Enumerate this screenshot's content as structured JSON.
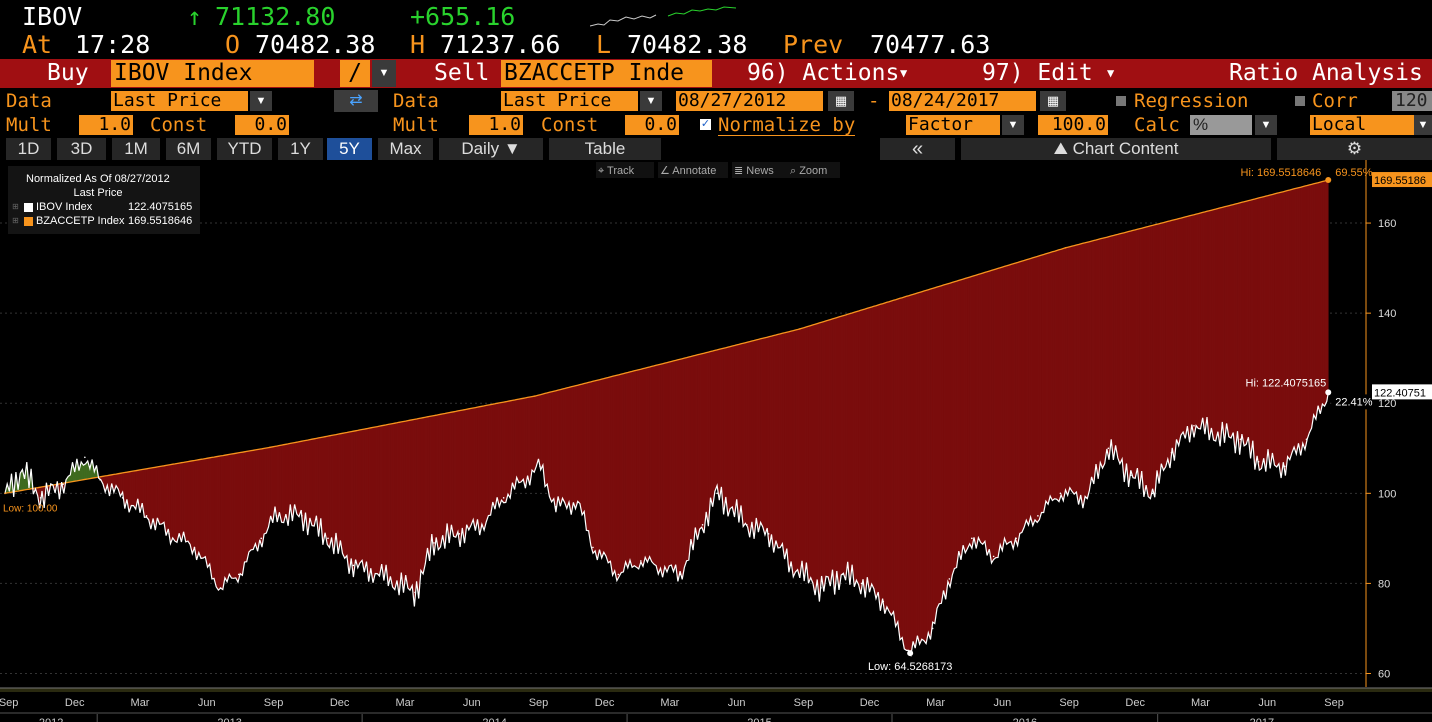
{
  "quote": {
    "ticker": "IBOV",
    "last_arrow": "↑",
    "last": "71132.80",
    "change": "+655.16",
    "at_label": "At",
    "time": "17:28",
    "open_label": "O",
    "open": "70482.38",
    "high_label": "H",
    "high": "71237.66",
    "low_label": "L",
    "low": "70482.38",
    "prev_label": "Prev",
    "prev": "70477.63"
  },
  "toolbar": {
    "buy_label": "Buy",
    "buy_security": "IBOV Index",
    "operator": "/",
    "sell_label": "Sell",
    "sell_security": "BZACCETP Inde",
    "actions_label": "96) Actions",
    "edit_label": "97) Edit",
    "ratio_label": "Ratio Analysis"
  },
  "settings": {
    "data_label": "Data",
    "data_value": "Last Price",
    "data2_label": "Data",
    "data2_value": "Last Price",
    "start_date": "08/27/2012",
    "date_sep": "-",
    "end_date": "08/24/2017",
    "regression_label": "Regression",
    "corr_label": "Corr",
    "corr_value": "120",
    "mult_label": "Mult",
    "mult_value": "1.0",
    "const_label": "Const",
    "const_value": "0.0",
    "mult2_label": "Mult",
    "mult2_value": "1.0",
    "const2_label": "Const",
    "const2_value": "0.0",
    "normalize_label": "Normalize by",
    "normalize_value": "Factor",
    "normalize_amount": "100.0",
    "calc_label": "Calc",
    "calc_value": "%",
    "local_value": "Local"
  },
  "ranges": {
    "buttons": [
      "1D",
      "3D",
      "1M",
      "6M",
      "YTD",
      "1Y",
      "5Y",
      "Max"
    ],
    "active": "5Y",
    "period": "Daily",
    "table_label": "Table",
    "collapse": "«",
    "chart_content": "Chart Content"
  },
  "tools": {
    "track": "Track",
    "annotate": "Annotate",
    "news": "News",
    "zoom": "Zoom"
  },
  "legend": {
    "title": "Normalized As Of 08/27/2012",
    "subtitle": "Last Price",
    "entries": [
      {
        "name": "IBOV Index",
        "value": "122.4075165",
        "color": "#ffffff"
      },
      {
        "name": "BZACCETP Index",
        "value": "169.5518646",
        "color": "#f7941d"
      }
    ]
  },
  "chart_data": {
    "type": "line",
    "title": "",
    "xlabel": "",
    "ylabel": "",
    "ylim": [
      57,
      174
    ],
    "xlim": [
      "2012-08-27",
      "2017-10-15"
    ],
    "y_ticks": [
      60,
      80,
      100,
      120,
      140,
      160
    ],
    "x_ticks_months": [
      {
        "label": "Sep",
        "date": "2012-09-01"
      },
      {
        "label": "Dec",
        "date": "2012-12-01"
      },
      {
        "label": "Mar",
        "date": "2013-03-01"
      },
      {
        "label": "Jun",
        "date": "2013-06-01"
      },
      {
        "label": "Sep",
        "date": "2013-09-01"
      },
      {
        "label": "Dec",
        "date": "2013-12-01"
      },
      {
        "label": "Mar",
        "date": "2014-03-01"
      },
      {
        "label": "Jun",
        "date": "2014-06-01"
      },
      {
        "label": "Sep",
        "date": "2014-09-01"
      },
      {
        "label": "Dec",
        "date": "2014-12-01"
      },
      {
        "label": "Mar",
        "date": "2015-03-01"
      },
      {
        "label": "Jun",
        "date": "2015-06-01"
      },
      {
        "label": "Sep",
        "date": "2015-09-01"
      },
      {
        "label": "Dec",
        "date": "2015-12-01"
      },
      {
        "label": "Mar",
        "date": "2016-03-01"
      },
      {
        "label": "Jun",
        "date": "2016-06-01"
      },
      {
        "label": "Sep",
        "date": "2016-09-01"
      },
      {
        "label": "Dec",
        "date": "2016-12-01"
      },
      {
        "label": "Mar",
        "date": "2017-03-01"
      },
      {
        "label": "Jun",
        "date": "2017-06-01"
      },
      {
        "label": "Sep",
        "date": "2017-09-01"
      }
    ],
    "x_ticks_years": [
      "2012",
      "2013",
      "2014",
      "2015",
      "2016",
      "2017"
    ],
    "series": [
      {
        "name": "IBOV Index",
        "color": "#ffffff",
        "points": [
          [
            "2012-08-27",
            100
          ],
          [
            "2012-09-20",
            105
          ],
          [
            "2012-10-15",
            99
          ],
          [
            "2012-11-15",
            102
          ],
          [
            "2012-12-15",
            108
          ],
          [
            "2013-01-05",
            103
          ],
          [
            "2013-02-05",
            99
          ],
          [
            "2013-03-10",
            95
          ],
          [
            "2013-04-10",
            91
          ],
          [
            "2013-05-15",
            88
          ],
          [
            "2013-06-20",
            79
          ],
          [
            "2013-07-15",
            82
          ],
          [
            "2013-08-15",
            90
          ],
          [
            "2013-09-05",
            95
          ],
          [
            "2013-10-10",
            95
          ],
          [
            "2013-11-15",
            90
          ],
          [
            "2013-12-20",
            84
          ],
          [
            "2014-01-25",
            82
          ],
          [
            "2014-03-15",
            78
          ],
          [
            "2014-04-10",
            89
          ],
          [
            "2014-05-15",
            91
          ],
          [
            "2014-06-15",
            93
          ],
          [
            "2014-07-15",
            99
          ],
          [
            "2014-09-03",
            106
          ],
          [
            "2014-09-25",
            97
          ],
          [
            "2014-10-25",
            98
          ],
          [
            "2014-11-15",
            88
          ],
          [
            "2014-12-20",
            82
          ],
          [
            "2015-01-20",
            85
          ],
          [
            "2015-03-15",
            82
          ],
          [
            "2015-04-15",
            93
          ],
          [
            "2015-05-05",
            100
          ],
          [
            "2015-06-15",
            93
          ],
          [
            "2015-07-15",
            91
          ],
          [
            "2015-08-15",
            84
          ],
          [
            "2015-09-25",
            79
          ],
          [
            "2015-10-25",
            82
          ],
          [
            "2015-11-20",
            80
          ],
          [
            "2015-12-20",
            76
          ],
          [
            "2016-01-26",
            64.53
          ],
          [
            "2016-02-26",
            70
          ],
          [
            "2016-03-20",
            81
          ],
          [
            "2016-04-20",
            90
          ],
          [
            "2016-05-20",
            86
          ],
          [
            "2016-06-20",
            90
          ],
          [
            "2016-07-20",
            95
          ],
          [
            "2016-08-20",
            100
          ],
          [
            "2016-09-25",
            99
          ],
          [
            "2016-10-25",
            110
          ],
          [
            "2016-11-25",
            104
          ],
          [
            "2016-12-25",
            100
          ],
          [
            "2017-01-20",
            109
          ],
          [
            "2017-02-20",
            115
          ],
          [
            "2017-03-25",
            113
          ],
          [
            "2017-04-25",
            112
          ],
          [
            "2017-05-20",
            107
          ],
          [
            "2017-06-25",
            106
          ],
          [
            "2017-07-25",
            112
          ],
          [
            "2017-08-24",
            122.41
          ]
        ]
      },
      {
        "name": "BZACCETP Index",
        "color": "#f7941d",
        "points": [
          [
            "2012-08-27",
            100
          ],
          [
            "2013-08-27",
            110.2
          ],
          [
            "2014-08-27",
            121.6
          ],
          [
            "2015-08-27",
            136.5
          ],
          [
            "2016-08-27",
            154.5
          ],
          [
            "2017-08-24",
            169.55
          ]
        ]
      }
    ],
    "annotations": {
      "hi_top": "Hi: 169.5518646",
      "hi_top_pct": "69.55%",
      "hi_top_tag": "169.55186",
      "hi_ibov": "Hi: 122.4075165",
      "hi_ibov_pct": "22.41%",
      "hi_ibov_tag": "122.40751",
      "low_ibov": "Low: 64.5268173",
      "low_left": "Low: 100.00"
    },
    "colors": {
      "spread_neg": "#7a0d0d",
      "spread_pos": "#3f6b1f",
      "grid": "#333333"
    }
  }
}
